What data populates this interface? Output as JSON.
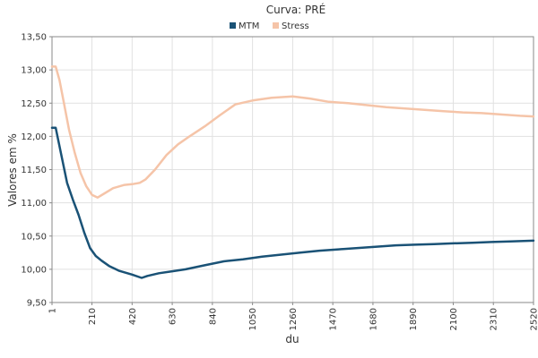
{
  "chart_data": {
    "type": "line",
    "title": "Curva: PRÉ",
    "xlabel": "du",
    "ylabel": "Valores em %",
    "xlim": [
      1,
      2520
    ],
    "ylim": [
      9.5,
      13.5
    ],
    "x_ticks": [
      "1",
      "210",
      "420",
      "630",
      "840",
      "1050",
      "1260",
      "1470",
      "1680",
      "1890",
      "2100",
      "2310",
      "2520"
    ],
    "y_ticks": [
      "9,50",
      "10,00",
      "10,50",
      "11,00",
      "11,50",
      "12,00",
      "12,50",
      "13,00",
      "13,50"
    ],
    "grid": true,
    "legend_position": "top",
    "series": [
      {
        "name": "MTM",
        "color": "#1a5276",
        "x": [
          1,
          20,
          50,
          80,
          110,
          140,
          170,
          200,
          230,
          260,
          300,
          350,
          420,
          470,
          500,
          560,
          630,
          700,
          800,
          900,
          1000,
          1100,
          1200,
          1300,
          1400,
          1500,
          1600,
          1700,
          1800,
          1900,
          2000,
          2100,
          2200,
          2300,
          2400,
          2520
        ],
        "values": [
          12.13,
          12.13,
          11.72,
          11.3,
          11.05,
          10.82,
          10.55,
          10.32,
          10.2,
          10.13,
          10.05,
          9.98,
          9.92,
          9.87,
          9.9,
          9.94,
          9.97,
          10.0,
          10.06,
          10.12,
          10.15,
          10.19,
          10.22,
          10.25,
          10.28,
          10.3,
          10.32,
          10.34,
          10.36,
          10.37,
          10.38,
          10.39,
          10.4,
          10.41,
          10.42,
          10.43
        ]
      },
      {
        "name": "Stress",
        "color": "#f5c4a8",
        "x": [
          1,
          20,
          40,
          60,
          90,
          120,
          150,
          180,
          210,
          240,
          280,
          320,
          380,
          420,
          460,
          490,
          540,
          600,
          660,
          720,
          800,
          880,
          960,
          1050,
          1150,
          1260,
          1350,
          1450,
          1550,
          1650,
          1750,
          1850,
          1950,
          2050,
          2150,
          2250,
          2350,
          2450,
          2520
        ],
        "values": [
          13.05,
          13.05,
          12.85,
          12.55,
          12.1,
          11.75,
          11.45,
          11.25,
          11.12,
          11.08,
          11.15,
          11.22,
          11.27,
          11.28,
          11.3,
          11.35,
          11.5,
          11.72,
          11.88,
          12.0,
          12.15,
          12.32,
          12.48,
          12.54,
          12.58,
          12.6,
          12.57,
          12.52,
          12.5,
          12.47,
          12.44,
          12.42,
          12.4,
          12.38,
          12.36,
          12.35,
          12.33,
          12.31,
          12.3
        ]
      }
    ]
  }
}
